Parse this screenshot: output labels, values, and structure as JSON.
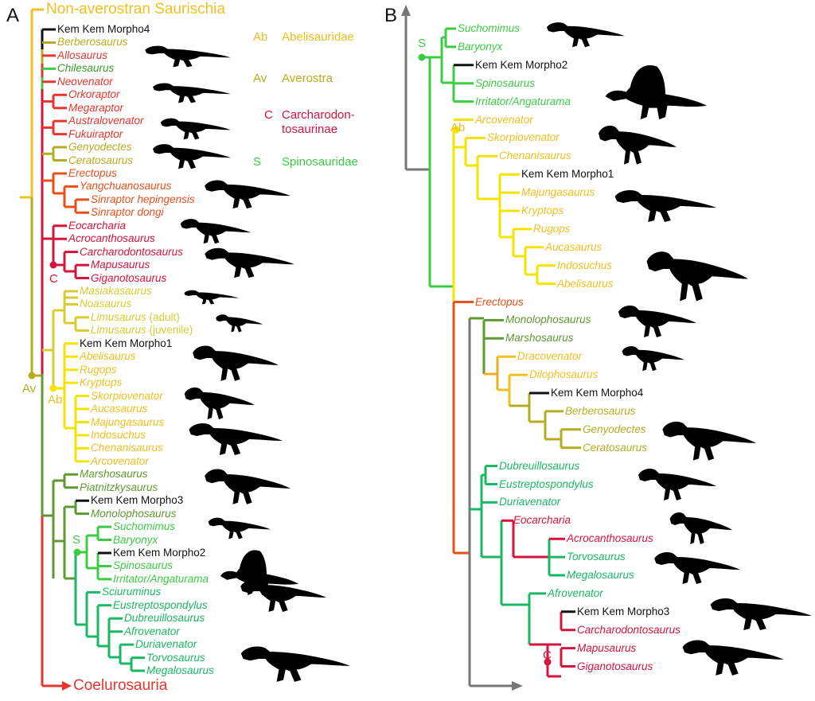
{
  "panelA": {
    "letter": "A",
    "top_label": {
      "text": "Non-averostran Saurischia",
      "color": "#f0c020"
    },
    "bottom_label": {
      "text": "Coelurosauria",
      "color": "#e8352d"
    },
    "nodes": {
      "av": {
        "text": "Av",
        "color": "#b5ad1f"
      },
      "ab": {
        "text": "Ab",
        "color": "#e8c020"
      },
      "c": {
        "text": "C",
        "color": "#d4143c"
      },
      "s": {
        "text": "S",
        "color": "#3ccc44"
      }
    },
    "taxa": [
      {
        "name": "Kem Kem Morpho4",
        "color": "#111111",
        "plain": true
      },
      {
        "name": "Berberosaurus",
        "color": "#b5ad1f"
      },
      {
        "name": "Allosaurus",
        "color": "#e8352d"
      },
      {
        "name": "Chilesaurus",
        "color": "#3a9a2a"
      },
      {
        "name": "Neovenator",
        "color": "#e8352d"
      },
      {
        "name": "Orkoraptor",
        "color": "#e8352d"
      },
      {
        "name": "Megaraptor",
        "color": "#e8352d"
      },
      {
        "name": "Australovenator",
        "color": "#e8352d"
      },
      {
        "name": "Fukuiraptor",
        "color": "#e8352d"
      },
      {
        "name": "Genyodectes",
        "color": "#b5ad1f"
      },
      {
        "name": "Ceratosaurus",
        "color": "#b5ad1f"
      },
      {
        "name": "Erectopus",
        "color": "#e8501a"
      },
      {
        "name": "Yangchuanosaurus",
        "color": "#e8501a"
      },
      {
        "name": "Sinraptor hepingensis",
        "color": "#e8501a"
      },
      {
        "name": "Sinraptor dongi",
        "color": "#e8501a"
      },
      {
        "name": "Eocarcharia",
        "color": "#d4143c"
      },
      {
        "name": "Acrocanthosaurus",
        "color": "#d4143c"
      },
      {
        "name": "Carcharodontosaurus",
        "color": "#d4143c"
      },
      {
        "name": "Mapusaurus",
        "color": "#d4143c"
      },
      {
        "name": "Giganotosaurus",
        "color": "#d4143c"
      },
      {
        "name": "Masiakasaurus",
        "color": "#d8cc30"
      },
      {
        "name": "Noasaurus",
        "color": "#d8cc30"
      },
      {
        "name": "Limusaurus",
        "suffix": " (adult)",
        "color": "#d8cc30"
      },
      {
        "name": "Limusaurus",
        "suffix": " (juvenile)",
        "color": "#d8cc30"
      },
      {
        "name": "Kem Kem Morpho1",
        "color": "#111111",
        "plain": true
      },
      {
        "name": "Abelisaurus",
        "color": "#f0c020"
      },
      {
        "name": "Rugops",
        "color": "#f0c020"
      },
      {
        "name": "Kryptops",
        "color": "#f0c020"
      },
      {
        "name": "Skorpiovenator",
        "color": "#f0c020"
      },
      {
        "name": "Aucasaurus",
        "color": "#f0c020"
      },
      {
        "name": "Majungasaurus",
        "color": "#f0c020"
      },
      {
        "name": "Indosuchus",
        "color": "#f0c020"
      },
      {
        "name": "Chenanisaurus",
        "color": "#f0c020"
      },
      {
        "name": "Arcovenator",
        "color": "#f0c020"
      },
      {
        "name": "Marshosaurus",
        "color": "#5e9a30"
      },
      {
        "name": "Piatnitzkysaurus",
        "color": "#5e9a30"
      },
      {
        "name": "Kem Kem Morpho3",
        "color": "#111111",
        "plain": true
      },
      {
        "name": "Monolophosaurus",
        "color": "#5e9a30"
      },
      {
        "name": "Suchomimus",
        "color": "#3ccc44"
      },
      {
        "name": "Baryonyx",
        "color": "#3ccc44"
      },
      {
        "name": "Kem Kem Morpho2",
        "color": "#111111",
        "plain": true
      },
      {
        "name": "Spinosaurus",
        "color": "#3ccc44"
      },
      {
        "name": "Irritator/Angaturama",
        "color": "#3ccc44"
      },
      {
        "name": "Sciuruminus",
        "color": "#1ab864"
      },
      {
        "name": "Eustreptospondylus",
        "color": "#1ab864"
      },
      {
        "name": "Dubreuillosaurus",
        "color": "#1ab864"
      },
      {
        "name": "Afrovenator",
        "color": "#1ab864"
      },
      {
        "name": "Duriavenator",
        "color": "#1ab864"
      },
      {
        "name": "Torvosaurus",
        "color": "#1ab864"
      },
      {
        "name": "Megalosaurus",
        "color": "#1ab864"
      }
    ]
  },
  "legend": [
    {
      "abbr": "Ab",
      "name": "Abelisauridae",
      "color": "#e8c020"
    },
    {
      "abbr": "Av",
      "name": "Averostra",
      "color": "#b5ad1f"
    },
    {
      "abbr": "C",
      "name": "Carcharodon-\ntosaurinae",
      "color": "#d4143c"
    },
    {
      "abbr": "S",
      "name": "Spinosauridae",
      "color": "#3ccc44"
    }
  ],
  "panelB": {
    "letter": "B",
    "nodes": {
      "s": {
        "text": "S",
        "color": "#3ccc44"
      },
      "ab": {
        "text": "Ab",
        "color": "#e8c020"
      },
      "c": {
        "text": "C",
        "color": "#d4143c"
      }
    },
    "taxa": [
      {
        "name": "Suchomimus",
        "color": "#3ccc44"
      },
      {
        "name": "Baryonyx",
        "color": "#3ccc44"
      },
      {
        "name": "Kem Kem Morpho2",
        "color": "#111111",
        "plain": true
      },
      {
        "name": "Spinosaurus",
        "color": "#3ccc44"
      },
      {
        "name": "Irritator/Angaturama",
        "color": "#3ccc44"
      },
      {
        "name": "Arcovenator",
        "color": "#f0c020"
      },
      {
        "name": "Skorpiovenator",
        "color": "#f0c020"
      },
      {
        "name": "Chenanisaurus",
        "color": "#f0c020"
      },
      {
        "name": "Kem Kem Morpho1",
        "color": "#111111",
        "plain": true
      },
      {
        "name": "Majungasaurus",
        "color": "#f0c020"
      },
      {
        "name": "Kryptops",
        "color": "#f0c020"
      },
      {
        "name": "Rugops",
        "color": "#f0c020"
      },
      {
        "name": "Aucasaurus",
        "color": "#f0c020"
      },
      {
        "name": "Indosuchus",
        "color": "#f0c020"
      },
      {
        "name": "Abelisaurus",
        "color": "#f0c020"
      },
      {
        "name": "Erectopus",
        "color": "#e8501a"
      },
      {
        "name": "Monolophosaurus",
        "color": "#5e9a30"
      },
      {
        "name": "Marshosaurus",
        "color": "#5e9a30"
      },
      {
        "name": "Dracovenator",
        "color": "#f0c020"
      },
      {
        "name": "Dilophosaurus",
        "color": "#f0c020"
      },
      {
        "name": "Kem Kem Morpho4",
        "color": "#111111",
        "plain": true
      },
      {
        "name": "Berberosaurus",
        "color": "#b5ad1f"
      },
      {
        "name": "Genyodectes",
        "color": "#b5ad1f"
      },
      {
        "name": "Ceratosaurus",
        "color": "#b5ad1f"
      },
      {
        "name": "Dubreuillosaurus",
        "color": "#1ab864"
      },
      {
        "name": "Eustreptospondylus",
        "color": "#1ab864"
      },
      {
        "name": "Duriavenator",
        "color": "#1ab864"
      },
      {
        "name": "Eocarcharia",
        "color": "#d4143c"
      },
      {
        "name": "Acrocanthosaurus",
        "color": "#d4143c"
      },
      {
        "name": "Torvosaurus",
        "color": "#1ab864"
      },
      {
        "name": "Megalosaurus",
        "color": "#1ab864"
      },
      {
        "name": "Afrovenator",
        "color": "#1ab864"
      },
      {
        "name": "Kem Kem Morpho3",
        "color": "#111111",
        "plain": true
      },
      {
        "name": "Carcharodontosaurus",
        "color": "#d4143c"
      },
      {
        "name": "Mapusaurus",
        "color": "#d4143c"
      },
      {
        "name": "Giganotosaurus",
        "color": "#d4143c"
      }
    ]
  }
}
